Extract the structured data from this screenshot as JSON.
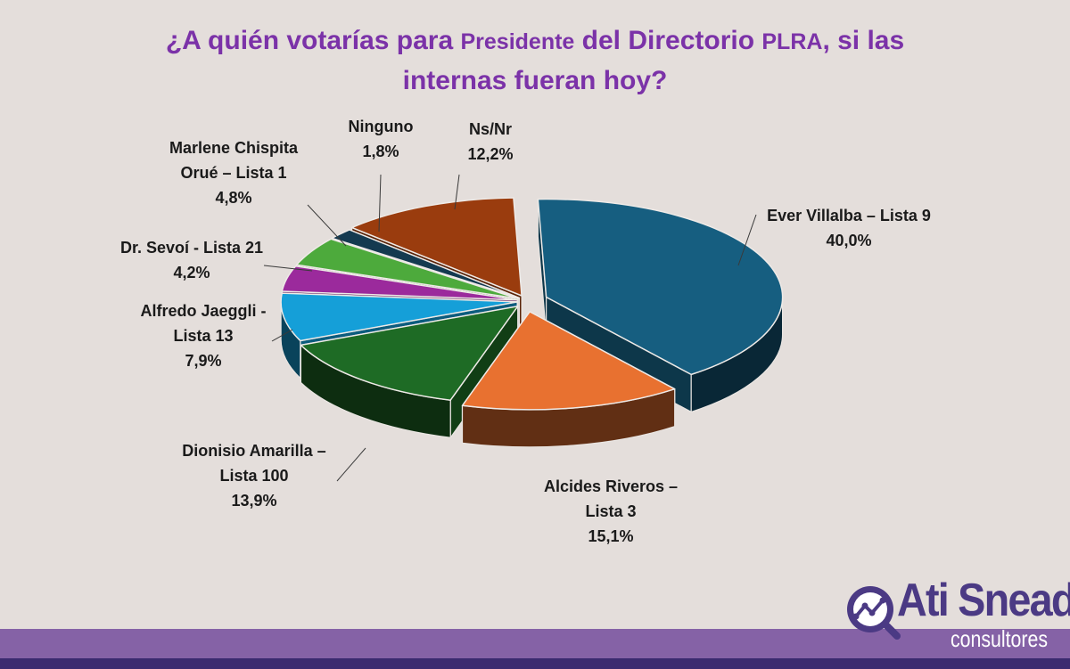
{
  "title": {
    "part1": "¿A quién votarías para ",
    "part2": "Presidente",
    "part3": " del Directorio ",
    "part4": "PLRA",
    "part5": ", si las",
    "line2": "internas fueran hoy?"
  },
  "logo": {
    "name": "Ati Snead",
    "sub": "consultores",
    "icon": "magnifier-chart-icon"
  },
  "colors": {
    "background": "#e4dedb",
    "title": "#7b32a8",
    "band": "#8562a6",
    "band_dark": "#3b2b70"
  },
  "chart_data": {
    "type": "pie",
    "style": "3d-exploded",
    "title": "¿A quién votarías para Presidente del Directorio PLRA, si las internas fueran hoy?",
    "slices": [
      {
        "label_lines": [
          "Ever Villalba – Lista 9"
        ],
        "value": 40.0,
        "display": "40,0%",
        "color": "#165e80"
      },
      {
        "label_lines": [
          "Alcides Riveros –",
          "Lista 3"
        ],
        "value": 15.1,
        "display": "15,1%",
        "color": "#e87130"
      },
      {
        "label_lines": [
          "Dionisio Amarilla –",
          "Lista 100"
        ],
        "value": 13.9,
        "display": "13,9%",
        "color": "#1e6b25"
      },
      {
        "label_lines": [
          "Alfredo Jaeggli -",
          "Lista 13"
        ],
        "value": 7.9,
        "display": "7,9%",
        "color": "#159fd8"
      },
      {
        "label_lines": [
          "Dr. Sevoí - Lista 21"
        ],
        "value": 4.2,
        "display": "4,2%",
        "color": "#9b2a9c"
      },
      {
        "label_lines": [
          "Marlene Chispita",
          "Orué – Lista 1"
        ],
        "value": 4.8,
        "display": "4,8%",
        "color": "#4daa3c"
      },
      {
        "label_lines": [
          "Ninguno"
        ],
        "value": 1.8,
        "display": "1,8%",
        "color": "#143a50"
      },
      {
        "label_lines": [
          "Ns/Nr"
        ],
        "value": 12.2,
        "display": "12,2%",
        "color": "#9a3c0e"
      }
    ]
  }
}
